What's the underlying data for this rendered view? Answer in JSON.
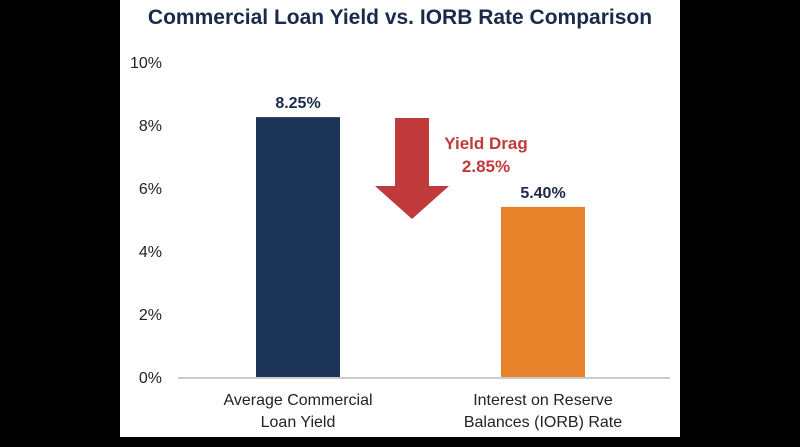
{
  "chart_data": {
    "type": "bar",
    "title": "Commercial Loan Yield vs. IORB Rate Comparison",
    "categories": [
      "Average Commercial Loan Yield",
      "Interest on Reserve Balances (IORB) Rate"
    ],
    "category_lines": [
      [
        "Average Commercial",
        "Loan Yield"
      ],
      [
        "Interest on Reserve",
        "Balances (IORB) Rate"
      ]
    ],
    "values": [
      8.25,
      5.4
    ],
    "value_labels": [
      "8.25%",
      "5.40%"
    ],
    "colors": [
      "#1c3557",
      "#e8822a"
    ],
    "ylim": [
      0,
      10
    ],
    "yticks": [
      0,
      2,
      4,
      6,
      8,
      10
    ],
    "ytick_labels": [
      "0%",
      "2%",
      "4%",
      "6%",
      "8%",
      "10%"
    ],
    "xlabel": "",
    "ylabel": "",
    "grid": false,
    "annotation": {
      "line1": "Yield Drag",
      "line2": "2.85%",
      "value": 2.85,
      "color": "#c0393b",
      "icon": "down-arrow-icon"
    }
  }
}
